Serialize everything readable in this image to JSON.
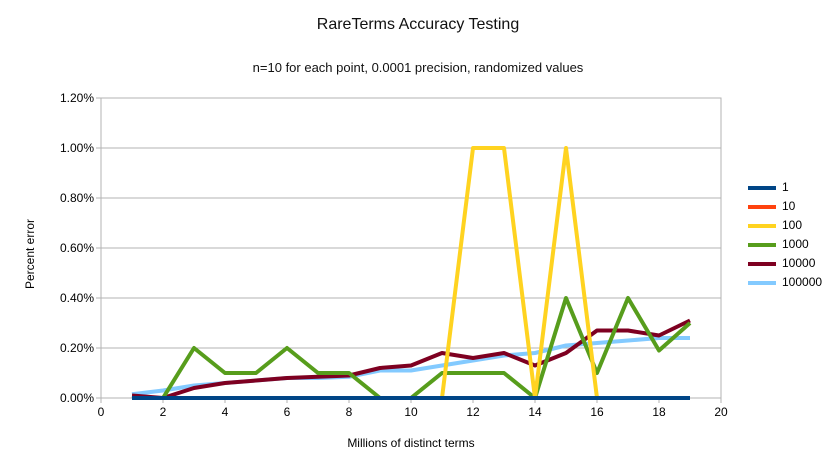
{
  "title": "RareTerms Accuracy Testing",
  "subtitle": "n=10 for each point, 0.0001 precision, randomized values",
  "chart_data": {
    "type": "line",
    "title": "RareTerms Accuracy Testing",
    "subtitle": "n=10 for each point, 0.0001 precision, randomized values",
    "xlabel": "Millions of distinct terms",
    "ylabel": "Percent error",
    "xlim": [
      0,
      20
    ],
    "ylim_percent": [
      0.0,
      1.2
    ],
    "grid": "horizontal",
    "grid_color": "#b3b3b3",
    "axis_color": "#b3b3b3",
    "legend_position": "right",
    "x_ticks": [
      0,
      2,
      4,
      6,
      8,
      10,
      12,
      14,
      16,
      18,
      20
    ],
    "y_ticks": [
      {
        "value": 0.0,
        "label": "0.00%"
      },
      {
        "value": 0.2,
        "label": "0.20%"
      },
      {
        "value": 0.4,
        "label": "0.40%"
      },
      {
        "value": 0.6,
        "label": "0.60%"
      },
      {
        "value": 0.8,
        "label": "0.80%"
      },
      {
        "value": 1.0,
        "label": "1.00%"
      },
      {
        "value": 1.2,
        "label": "1.20%"
      }
    ],
    "x": [
      1,
      2,
      3,
      4,
      5,
      6,
      7,
      8,
      9,
      10,
      11,
      12,
      13,
      14,
      15,
      16,
      17,
      18,
      19
    ],
    "series": [
      {
        "name": "1",
        "color": "#004586",
        "values": [
          0.0,
          0.0,
          0.0,
          0.0,
          0.0,
          0.0,
          0.0,
          0.0,
          0.0,
          0.0,
          0.0,
          0.0,
          0.0,
          0.0,
          0.0,
          0.0,
          0.0,
          0.0,
          0.0
        ]
      },
      {
        "name": "10",
        "color": "#ff420e",
        "values": [
          0.0,
          0.0,
          0.0,
          0.0,
          0.0,
          0.0,
          0.0,
          0.0,
          0.0,
          0.0,
          0.0,
          0.0,
          0.0,
          0.0,
          0.0,
          0.0,
          0.0,
          0.0,
          0.0
        ]
      },
      {
        "name": "100",
        "color": "#ffd320",
        "values": [
          0.0,
          0.0,
          0.0,
          0.0,
          0.0,
          0.0,
          0.0,
          0.0,
          0.0,
          0.0,
          0.0,
          1.0,
          1.0,
          0.0,
          1.0,
          0.0,
          0.0,
          0.0,
          0.0
        ]
      },
      {
        "name": "1000",
        "color": "#579d1c",
        "values": [
          0.0,
          0.0,
          0.2,
          0.1,
          0.1,
          0.2,
          0.1,
          0.1,
          0.0,
          0.0,
          0.1,
          0.1,
          0.1,
          0.0,
          0.4,
          0.1,
          0.4,
          0.19,
          0.3
        ]
      },
      {
        "name": "10000",
        "color": "#7e0021",
        "values": [
          0.01,
          0.0,
          0.04,
          0.06,
          0.07,
          0.08,
          0.085,
          0.09,
          0.12,
          0.13,
          0.18,
          0.16,
          0.18,
          0.13,
          0.18,
          0.27,
          0.27,
          0.25,
          0.31
        ]
      },
      {
        "name": "100000",
        "color": "#83caff",
        "values": [
          0.015,
          0.03,
          0.05,
          0.06,
          0.07,
          0.08,
          0.08,
          0.085,
          0.11,
          0.11,
          0.13,
          0.15,
          0.17,
          0.18,
          0.21,
          0.22,
          0.23,
          0.24,
          0.24
        ]
      }
    ]
  },
  "legend": {
    "items": [
      {
        "label": "1",
        "color": "#004586"
      },
      {
        "label": "10",
        "color": "#ff420e"
      },
      {
        "label": "100",
        "color": "#ffd320"
      },
      {
        "label": "1000",
        "color": "#579d1c"
      },
      {
        "label": "10000",
        "color": "#7e0021"
      },
      {
        "label": "100000",
        "color": "#83caff"
      }
    ]
  }
}
